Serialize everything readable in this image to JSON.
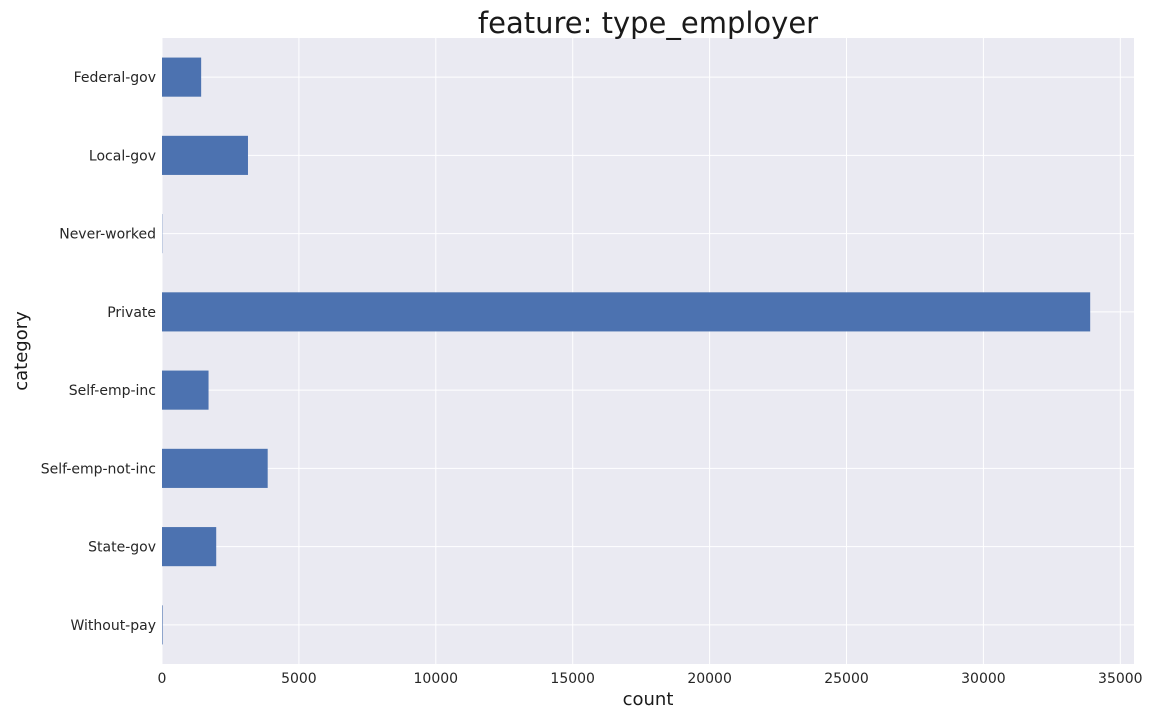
{
  "chart_data": {
    "type": "bar",
    "orientation": "horizontal",
    "title": "feature: type_employer",
    "xlabel": "count",
    "ylabel": "category",
    "categories": [
      "Federal-gov",
      "Local-gov",
      "Never-worked",
      "Private",
      "Self-emp-inc",
      "Self-emp-not-inc",
      "State-gov",
      "Without-pay"
    ],
    "values": [
      1430,
      3140,
      10,
      33900,
      1700,
      3860,
      1980,
      21
    ],
    "xlim": [
      0,
      35500
    ],
    "xticks": [
      0,
      5000,
      10000,
      15000,
      20000,
      25000,
      30000,
      35000
    ],
    "grid": true,
    "bar_color": "#4c72b0",
    "background_color": "#eaeaf2"
  }
}
